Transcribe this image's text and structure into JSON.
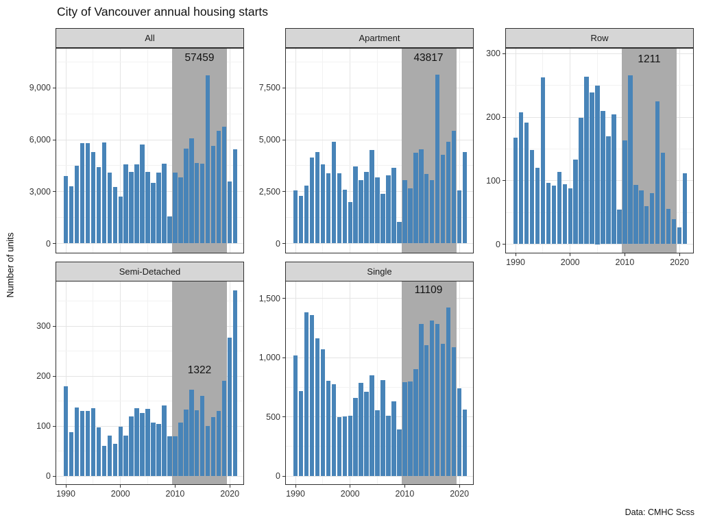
{
  "title": "City of Vancouver annual housing starts",
  "y_axis_title": "Number of units",
  "caption": "Data: CMHC Scss",
  "colors": {
    "bar": "#4884b8",
    "shade": "#ababab",
    "strip_bg": "#d6d6d6",
    "panel_border": "#2e2e2e",
    "grid_major": "#e4e4e4",
    "grid_minor": "#f2f2f2",
    "axis_text": "#333333"
  },
  "chart_data": {
    "type": "bar",
    "title": "City of Vancouver annual housing starts",
    "ylabel": "Number of units",
    "caption": "Data: CMHC Scss",
    "facet_labels": [
      "All",
      "Apartment",
      "Row",
      "Semi-Detached",
      "Single"
    ],
    "years": [
      1990,
      1991,
      1992,
      1993,
      1994,
      1995,
      1996,
      1997,
      1998,
      1999,
      2000,
      2001,
      2002,
      2003,
      2004,
      2005,
      2006,
      2007,
      2008,
      2009,
      2010,
      2011,
      2012,
      2013,
      2014,
      2015,
      2016,
      2017,
      2018,
      2019,
      2020,
      2021
    ],
    "x_ticks": [
      {
        "value": 1990,
        "label": "1990"
      },
      {
        "value": 2000,
        "label": "2000"
      },
      {
        "value": 2010,
        "label": "2010"
      },
      {
        "value": 2020,
        "label": "2020"
      }
    ],
    "highlight_region": {
      "x_from": 2009.5,
      "x_to": 2019.5
    },
    "panels": [
      {
        "label": "All",
        "region_total_label": "57459",
        "y_ticks": [
          {
            "value": 0,
            "label": "0"
          },
          {
            "value": 3000,
            "label": "3,000"
          },
          {
            "value": 6000,
            "label": "6,000"
          },
          {
            "value": 9000,
            "label": "9,000"
          }
        ],
        "values": [
          3918,
          3310,
          4514,
          5788,
          5813,
          5271,
          4401,
          5830,
          4093,
          3264,
          2698,
          4574,
          4156,
          4560,
          5715,
          4140,
          3527,
          4082,
          4628,
          1580,
          4098,
          3831,
          5491,
          6090,
          4658,
          4614,
          9737,
          5659,
          6519,
          6762,
          3596,
          5443
        ]
      },
      {
        "label": "Apartment",
        "region_total_label": "43817",
        "y_ticks": [
          {
            "value": 0,
            "label": "0"
          },
          {
            "value": 2500,
            "label": "2,500"
          },
          {
            "value": 5000,
            "label": "5,000"
          },
          {
            "value": 7500,
            "label": "7,500"
          }
        ],
        "values": [
          2550,
          2300,
          2800,
          4150,
          4400,
          3800,
          3400,
          4900,
          3400,
          2600,
          2000,
          3700,
          3050,
          3450,
          4500,
          3200,
          2400,
          3300,
          3650,
          1050,
          3060,
          2660,
          4360,
          4550,
          3360,
          3060,
          8130,
          4280,
          4910,
          5447,
          2550,
          4400
        ]
      },
      {
        "label": "Row",
        "region_total_label": "1211",
        "y_ticks": [
          {
            "value": 0,
            "label": "0"
          },
          {
            "value": 100,
            "label": "100"
          },
          {
            "value": 200,
            "label": "200"
          },
          {
            "value": 300,
            "label": "300"
          }
        ],
        "values": [
          168,
          208,
          192,
          148,
          120,
          263,
          97,
          92,
          114,
          94,
          88,
          133,
          199,
          264,
          239,
          250,
          210,
          170,
          204,
          54,
          163,
          266,
          93,
          85,
          60,
          80,
          225,
          144,
          56,
          39,
          26,
          112
        ]
      },
      {
        "label": "Semi-Detached",
        "region_total_label": "1322",
        "y_ticks": [
          {
            "value": 0,
            "label": "0"
          },
          {
            "value": 100,
            "label": "100"
          },
          {
            "value": 200,
            "label": "200"
          },
          {
            "value": 300,
            "label": "300"
          }
        ],
        "values": [
          180,
          87,
          137,
          130,
          130,
          136,
          97,
          60,
          81,
          65,
          98,
          81,
          119,
          136,
          126,
          134,
          107,
          104,
          141,
          80,
          80,
          107,
          133,
          172,
          132,
          160,
          100,
          118,
          130,
          190,
          277,
          371
        ]
      },
      {
        "label": "Single",
        "region_total_label": "11109",
        "y_ticks": [
          {
            "value": 0,
            "label": "0"
          },
          {
            "value": 500,
            "label": "500"
          },
          {
            "value": 1000,
            "label": "1,000"
          },
          {
            "value": 1500,
            "label": "1,500"
          }
        ],
        "values": [
          1020,
          715,
          1385,
          1360,
          1163,
          1072,
          807,
          778,
          498,
          505,
          512,
          660,
          788,
          710,
          850,
          556,
          810,
          508,
          633,
          396,
          795,
          798,
          905,
          1283,
          1106,
          1314,
          1282,
          1117,
          1423,
          1086,
          743,
          560
        ]
      }
    ]
  }
}
